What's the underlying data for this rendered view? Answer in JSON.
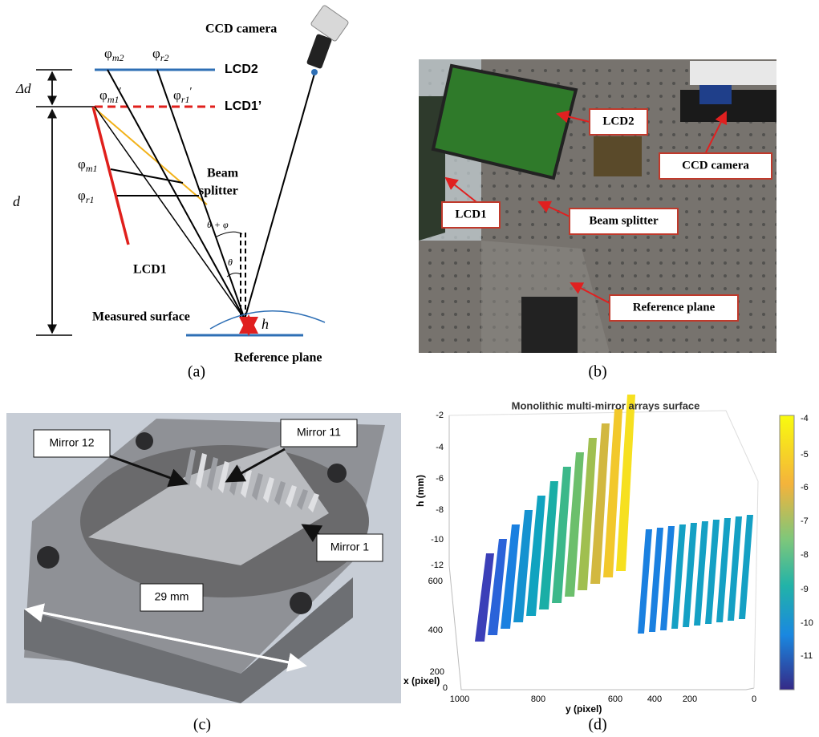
{
  "diagram": {
    "camera_label": "CCD camera",
    "lcd2": "LCD2",
    "lcd1_prime": "LCD1’",
    "lcd1": "LCD1",
    "beam_splitter": [
      "Beam",
      "splitter"
    ],
    "measured_surface": "Measured surface",
    "reference_plane": "Reference plane",
    "delta_d": "Δd",
    "d": "d",
    "h": "h",
    "theta_phi": "θ + φ",
    "theta": "θ",
    "phases": [
      {
        "base": "φ",
        "sub": "m2",
        "sup": ""
      },
      {
        "base": "φ",
        "sub": "r2",
        "sup": ""
      },
      {
        "base": "φ",
        "sub": "m1",
        "sup": "′"
      },
      {
        "base": "φ",
        "sub": "r1",
        "sup": "′"
      },
      {
        "base": "φ",
        "sub": "m1",
        "sup": ""
      },
      {
        "base": "φ",
        "sub": "r1",
        "sup": ""
      }
    ]
  },
  "photo_setup": {
    "labels": [
      "LCD2",
      "CCD camera",
      "LCD1",
      "Beam splitter",
      "Reference plane"
    ]
  },
  "photo_mirror": {
    "labels": [
      "Mirror 12",
      "Mirror 11",
      "Mirror 1",
      "29 mm"
    ]
  },
  "plot": {
    "title": "Monolithic multi-mirror arrays surface",
    "z_label": "h (mm)",
    "x_label": "x (pixel)",
    "y_label": "y (pixel)",
    "z_ticks": [
      -2,
      -4,
      -6,
      -8,
      -10,
      -12
    ],
    "x_ticks": [
      600,
      400,
      200,
      0
    ],
    "y_ticks": [
      1000,
      800,
      600,
      400,
      200,
      0
    ],
    "colorbar_ticks": [
      -4,
      -5,
      -6,
      -7,
      -8,
      -9,
      -10,
      -11
    ]
  },
  "captions": [
    "(a)",
    "(b)",
    "(c)",
    "(d)"
  ]
}
